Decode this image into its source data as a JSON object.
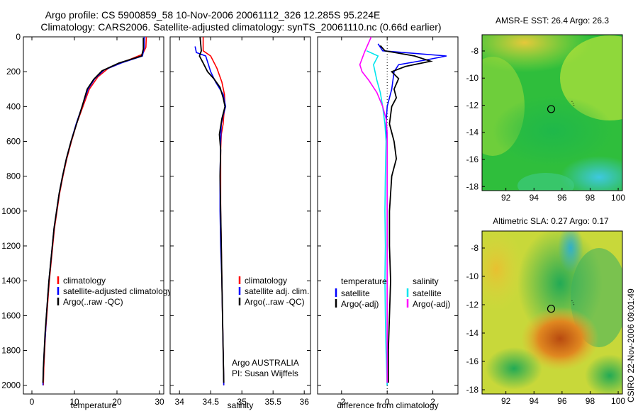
{
  "header": {
    "title_line1": "Argo profile: CS 5900859_58 10-Nov-2006 20061112_326 12.285S 95.224E",
    "title_line2": "Climatology: CARS2006. Satellite-adjusted climatology: synTS_20061110.nc (0.66d earlier)"
  },
  "credit": "CSIRO 22-Nov-2006 09:01:49",
  "colors": {
    "climatology": "#ff0000",
    "satellite": "#0000ff",
    "argo": "#000000",
    "temp_diff": "#00e5ee",
    "argo_adj": "#ff00ff"
  },
  "chart_data": [
    {
      "id": "temperature",
      "type": "line",
      "xlabel": "temperature",
      "ylabel": "",
      "xlim": [
        -2,
        31
      ],
      "ylim": [
        0,
        2050
      ],
      "xticks": [
        0,
        10,
        20,
        30
      ],
      "yticks": [
        0,
        200,
        400,
        600,
        800,
        1000,
        1200,
        1400,
        1600,
        1800,
        2000
      ],
      "legend": [
        "climatology",
        "satellite-adjusted climatology",
        "Argo(..raw -QC)"
      ],
      "series": [
        {
          "name": "climatology",
          "color": "#ff0000",
          "points": [
            [
              26.9,
              0
            ],
            [
              26.8,
              60
            ],
            [
              26.0,
              100
            ],
            [
              22.0,
              140
            ],
            [
              18.0,
              180
            ],
            [
              15.5,
              230
            ],
            [
              13.5,
              300
            ],
            [
              12.0,
              400
            ],
            [
              10.5,
              500
            ],
            [
              9.3,
              600
            ],
            [
              8.2,
              700
            ],
            [
              7.3,
              800
            ],
            [
              6.5,
              900
            ],
            [
              5.9,
              1000
            ],
            [
              5.3,
              1100
            ],
            [
              4.9,
              1200
            ],
            [
              4.5,
              1300
            ],
            [
              4.1,
              1400
            ],
            [
              3.8,
              1500
            ],
            [
              3.5,
              1600
            ],
            [
              3.2,
              1700
            ],
            [
              3.0,
              1800
            ],
            [
              2.8,
              1900
            ],
            [
              2.7,
              2000
            ]
          ]
        },
        {
          "name": "satellite-adjusted climatology",
          "color": "#0000ff",
          "points": [
            [
              26.4,
              0
            ],
            [
              26.4,
              60
            ],
            [
              26.0,
              110
            ],
            [
              21.0,
              150
            ],
            [
              17.0,
              190
            ],
            [
              14.8,
              240
            ],
            [
              13.2,
              300
            ],
            [
              11.8,
              400
            ],
            [
              10.4,
              500
            ],
            [
              9.2,
              600
            ],
            [
              8.1,
              700
            ],
            [
              7.2,
              800
            ],
            [
              6.4,
              900
            ],
            [
              5.8,
              1000
            ],
            [
              5.2,
              1100
            ],
            [
              4.8,
              1200
            ],
            [
              4.4,
              1300
            ],
            [
              4.0,
              1400
            ],
            [
              3.7,
              1500
            ],
            [
              3.4,
              1600
            ],
            [
              3.2,
              1700
            ],
            [
              2.9,
              1800
            ],
            [
              2.7,
              1900
            ],
            [
              2.6,
              2000
            ]
          ]
        },
        {
          "name": "Argo(..raw -QC)",
          "color": "#000000",
          "points": [
            [
              26.2,
              5
            ],
            [
              26.2,
              70
            ],
            [
              25.8,
              110
            ],
            [
              20.5,
              150
            ],
            [
              16.5,
              195
            ],
            [
              14.5,
              245
            ],
            [
              13.0,
              300
            ],
            [
              11.8,
              400
            ],
            [
              10.5,
              500
            ],
            [
              9.2,
              600
            ],
            [
              8.1,
              700
            ],
            [
              7.2,
              800
            ],
            [
              6.4,
              900
            ],
            [
              5.8,
              1000
            ],
            [
              5.2,
              1100
            ],
            [
              4.8,
              1200
            ],
            [
              4.4,
              1300
            ],
            [
              4.0,
              1400
            ],
            [
              3.7,
              1500
            ],
            [
              3.4,
              1600
            ],
            [
              3.1,
              1700
            ],
            [
              2.9,
              1800
            ],
            [
              2.7,
              1900
            ],
            [
              2.6,
              1985
            ]
          ]
        }
      ]
    },
    {
      "id": "salinity",
      "type": "line",
      "xlabel": "salinity",
      "xlim": [
        33.85,
        36.1
      ],
      "ylim": [
        0,
        2050
      ],
      "xticks": [
        34,
        34.5,
        35,
        35.5,
        36
      ],
      "yticks": [
        0,
        200,
        400,
        600,
        800,
        1000,
        1200,
        1400,
        1600,
        1800,
        2000
      ],
      "legend": [
        "climatology",
        "satellite adj. clim.",
        "Argo(..raw -QC)"
      ],
      "annotation": [
        "Argo AUSTRALIA",
        "PI: Susan Wijffels"
      ],
      "series": [
        {
          "name": "climatology",
          "color": "#ff0000",
          "points": [
            [
              34.38,
              0
            ],
            [
              34.38,
              80
            ],
            [
              34.5,
              110
            ],
            [
              34.6,
              180
            ],
            [
              34.68,
              260
            ],
            [
              34.72,
              330
            ],
            [
              34.73,
              400
            ],
            [
              34.71,
              450
            ],
            [
              34.7,
              500
            ],
            [
              34.67,
              560
            ],
            [
              34.66,
              650
            ],
            [
              34.66,
              800
            ],
            [
              34.66,
              1000
            ],
            [
              34.67,
              1200
            ],
            [
              34.68,
              1400
            ],
            [
              34.69,
              1600
            ],
            [
              34.7,
              1800
            ],
            [
              34.71,
              2000
            ]
          ]
        },
        {
          "name": "satellite adj. clim.",
          "color": "#0000ff",
          "points": [
            [
              34.25,
              55
            ],
            [
              34.27,
              90
            ],
            [
              34.42,
              110
            ],
            [
              34.5,
              200
            ],
            [
              34.58,
              260
            ],
            [
              34.7,
              330
            ],
            [
              34.74,
              400
            ],
            [
              34.7,
              450
            ],
            [
              34.67,
              500
            ],
            [
              34.66,
              600
            ],
            [
              34.65,
              800
            ],
            [
              34.65,
              1000
            ],
            [
              34.66,
              1200
            ],
            [
              34.68,
              1400
            ],
            [
              34.69,
              1600
            ],
            [
              34.7,
              1800
            ],
            [
              34.71,
              2000
            ]
          ]
        },
        {
          "name": "Argo(..raw -QC)",
          "color": "#000000",
          "points": [
            [
              34.33,
              0
            ],
            [
              34.35,
              80
            ],
            [
              34.32,
              110
            ],
            [
              34.38,
              150
            ],
            [
              34.45,
              200
            ],
            [
              34.55,
              240
            ],
            [
              34.65,
              290
            ],
            [
              34.7,
              350
            ],
            [
              34.73,
              400
            ],
            [
              34.68,
              470
            ],
            [
              34.64,
              560
            ],
            [
              34.66,
              650
            ],
            [
              34.65,
              800
            ],
            [
              34.66,
              1000
            ],
            [
              34.67,
              1200
            ],
            [
              34.68,
              1400
            ],
            [
              34.69,
              1600
            ],
            [
              34.7,
              1800
            ],
            [
              34.71,
              1985
            ]
          ]
        }
      ]
    },
    {
      "id": "difference",
      "type": "line",
      "xlabel": "difference from climatology",
      "xlim": [
        -3.05,
        3.1
      ],
      "ylim": [
        0,
        2050
      ],
      "xticks": [
        -2,
        0,
        2
      ],
      "yticks": [
        0,
        200,
        400,
        600,
        800,
        1000,
        1200,
        1400,
        1600,
        1800,
        2000
      ],
      "legend_temperature": {
        "heading": "temperature",
        "items": [
          "satellite",
          "Argo(-adj)"
        ]
      },
      "legend_salinity": {
        "heading": "salinity",
        "items": [
          "satellite",
          "Argo(-adj)"
        ]
      },
      "series": [
        {
          "name": "temperature satellite",
          "color": "#0000ff",
          "points": [
            [
              -0.4,
              40
            ],
            [
              -0.2,
              80
            ],
            [
              2.6,
              110
            ],
            [
              1.8,
              130
            ],
            [
              0.5,
              160
            ],
            [
              0.3,
              200
            ],
            [
              0.2,
              300
            ],
            [
              0.0,
              400
            ],
            [
              -0.05,
              500
            ],
            [
              0.0,
              600
            ],
            [
              0.0,
              800
            ],
            [
              0.0,
              1000
            ],
            [
              0.0,
              1200
            ],
            [
              0.0,
              1400
            ],
            [
              0.0,
              1600
            ],
            [
              0.0,
              1800
            ],
            [
              0.0,
              2000
            ]
          ]
        },
        {
          "name": "temperature Argo(-adj)",
          "color": "#000000",
          "points": [
            [
              -0.3,
              50
            ],
            [
              -0.1,
              80
            ],
            [
              1.2,
              110
            ],
            [
              1.9,
              140
            ],
            [
              0.8,
              170
            ],
            [
              0.2,
              200
            ],
            [
              0.5,
              240
            ],
            [
              0.3,
              300
            ],
            [
              0.4,
              350
            ],
            [
              0.2,
              400
            ],
            [
              0.1,
              500
            ],
            [
              0.3,
              600
            ],
            [
              0.4,
              700
            ],
            [
              0.2,
              800
            ],
            [
              0.1,
              1000
            ],
            [
              0.1,
              1200
            ],
            [
              0.15,
              1400
            ],
            [
              0.1,
              1600
            ],
            [
              0.05,
              1800
            ],
            [
              0.05,
              1985
            ]
          ]
        },
        {
          "name": "salinity satellite",
          "color": "#00e5ee",
          "points": [
            [
              -0.9,
              80
            ],
            [
              -0.4,
              110
            ],
            [
              -0.6,
              160
            ],
            [
              -0.45,
              250
            ],
            [
              -0.3,
              320
            ],
            [
              -0.2,
              400
            ],
            [
              -0.1,
              500
            ],
            [
              -0.05,
              600
            ],
            [
              -0.08,
              800
            ],
            [
              -0.1,
              1000
            ],
            [
              -0.08,
              1200
            ],
            [
              -0.1,
              1400
            ],
            [
              -0.08,
              1600
            ],
            [
              -0.05,
              1800
            ],
            [
              0.0,
              2000
            ]
          ]
        },
        {
          "name": "salinity Argo(-adj)",
          "color": "#ff00ff",
          "points": [
            [
              -0.7,
              0
            ],
            [
              -1.0,
              90
            ],
            [
              -1.2,
              160
            ],
            [
              -1.1,
              200
            ],
            [
              -0.8,
              250
            ],
            [
              -0.45,
              320
            ],
            [
              -0.2,
              400
            ],
            [
              -0.05,
              470
            ],
            [
              0.0,
              550
            ],
            [
              0.0,
              800
            ],
            [
              0.0,
              1000
            ],
            [
              0.0,
              1200
            ],
            [
              0.0,
              1400
            ],
            [
              0.0,
              1600
            ],
            [
              0.0,
              1800
            ],
            [
              0.0,
              1985
            ]
          ]
        }
      ]
    },
    {
      "id": "sst_map",
      "type": "heatmap",
      "title": "AMSR-E SST: 26.4 Argo: 26.3",
      "xlim": [
        90.3,
        100.3
      ],
      "ylim": [
        -18.3,
        -6.8
      ],
      "xticks": [
        92,
        94,
        96,
        98,
        100
      ],
      "yticks": [
        -8,
        -10,
        -12,
        -14,
        -16,
        -18
      ],
      "marker": {
        "lon": 95.224,
        "lat": -12.285
      },
      "track": [
        [
          96.7,
          -11.7
        ],
        [
          96.9,
          -12.1
        ]
      ]
    },
    {
      "id": "sla_map",
      "type": "heatmap",
      "title": "Altimetric SLA: 0.27 Argo: 0.17",
      "xlim": [
        90.3,
        100.3
      ],
      "ylim": [
        -18.3,
        -6.8
      ],
      "xticks": [
        92,
        94,
        96,
        98,
        100
      ],
      "yticks": [
        -8,
        -10,
        -12,
        -14,
        -16,
        -18
      ],
      "marker": {
        "lon": 95.224,
        "lat": -12.285
      },
      "track": [
        [
          96.7,
          -11.7
        ],
        [
          96.9,
          -12.1
        ]
      ]
    }
  ]
}
